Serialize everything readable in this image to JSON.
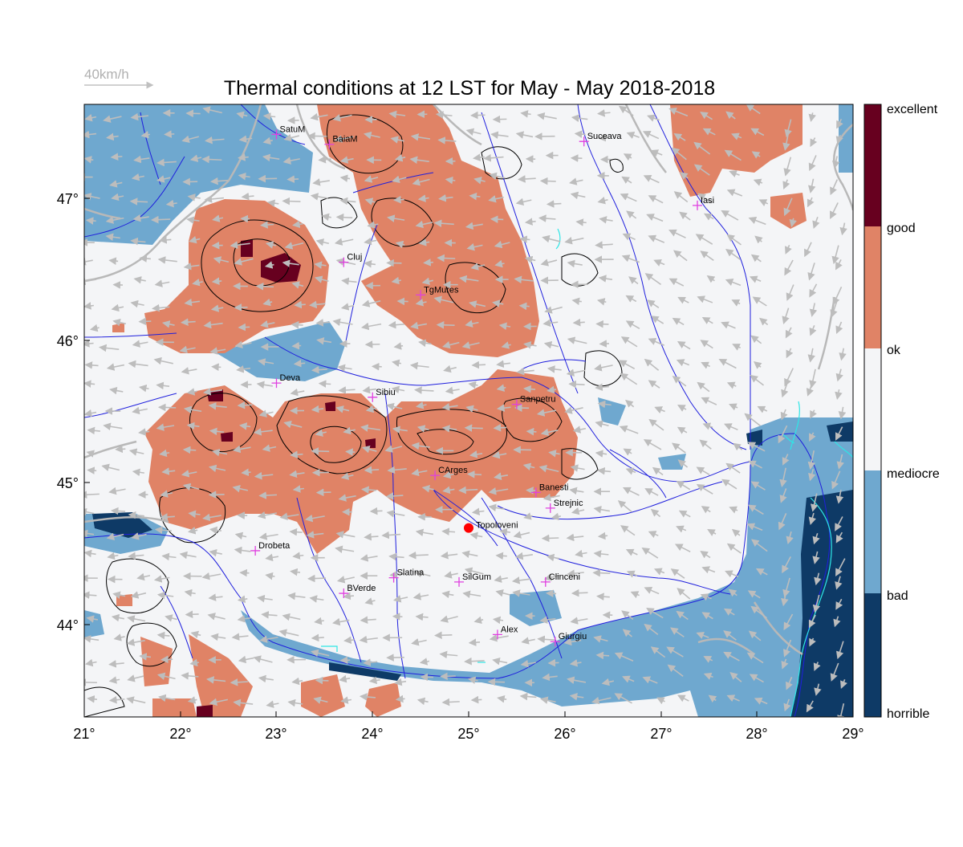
{
  "title": "Thermal conditions at 12 LST for May - May  2018-2018",
  "wind_scale": {
    "label": "40km/h"
  },
  "x_ticks": [
    "21°",
    "22°",
    "23°",
    "24°",
    "25°",
    "26°",
    "27°",
    "28°",
    "29°"
  ],
  "y_ticks": [
    "47°",
    "46°",
    "45°",
    "44°"
  ],
  "legend": {
    "categories": [
      {
        "label": "excellent",
        "color": "#67001f"
      },
      {
        "label": "good",
        "color": "#e08366"
      },
      {
        "label": "ok",
        "color": "#f4f5f7"
      },
      {
        "label": "mediocre",
        "color": "#6fa8cf"
      },
      {
        "label": "bad",
        "color": "#0e3a66"
      },
      {
        "label": "horrible",
        "color": "#0e3a66"
      }
    ]
  },
  "colors": {
    "excellent": "#67001f",
    "good": "#e08366",
    "ok": "#f4f5f7",
    "mediocre": "#6fa8cf",
    "bad": "#0e3a66",
    "river": "#1f1fdd",
    "border": "#b8b8b8",
    "arrow": "#bdbdbd",
    "station": "#e040e0",
    "highlight": "#ff0000",
    "contour": "#000000",
    "lake": "#2ee6e6"
  },
  "stations": [
    {
      "name": "SatuM",
      "lon": 23.0,
      "lat": 47.45
    },
    {
      "name": "BaiaM",
      "lon": 23.55,
      "lat": 47.38
    },
    {
      "name": "Suceava",
      "lon": 26.2,
      "lat": 47.4
    },
    {
      "name": "Iasi",
      "lon": 27.38,
      "lat": 46.95
    },
    {
      "name": "Cluj",
      "lon": 23.7,
      "lat": 46.55
    },
    {
      "name": "TgMures",
      "lon": 24.5,
      "lat": 46.32
    },
    {
      "name": "Deva",
      "lon": 23.0,
      "lat": 45.7
    },
    {
      "name": "Sibiu",
      "lon": 24.0,
      "lat": 45.6
    },
    {
      "name": "Sanpetru",
      "lon": 25.5,
      "lat": 45.55
    },
    {
      "name": "CArges",
      "lon": 24.65,
      "lat": 45.05
    },
    {
      "name": "Banesti",
      "lon": 25.7,
      "lat": 44.93
    },
    {
      "name": "Strejnic",
      "lon": 25.85,
      "lat": 44.82
    },
    {
      "name": "Drobeta",
      "lon": 22.78,
      "lat": 44.52
    },
    {
      "name": "Slatina",
      "lon": 24.22,
      "lat": 44.33
    },
    {
      "name": "SilGum",
      "lon": 24.9,
      "lat": 44.3
    },
    {
      "name": "Clinceni",
      "lon": 25.8,
      "lat": 44.3
    },
    {
      "name": "BVerde",
      "lon": 23.7,
      "lat": 44.22
    },
    {
      "name": "Alex",
      "lon": 25.3,
      "lat": 43.93
    },
    {
      "name": "Giurgiu",
      "lon": 25.9,
      "lat": 43.88
    }
  ],
  "highlight_station": {
    "name": "Topoloveni",
    "lon": 25.0,
    "lat": 44.68
  }
}
